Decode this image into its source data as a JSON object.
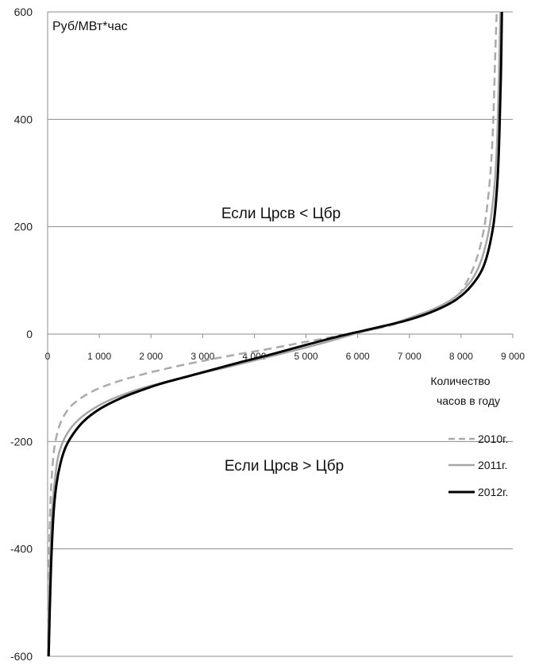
{
  "chart_data": {
    "type": "line",
    "title": "",
    "ylabel": "Руб/МВт*час",
    "xlabel": [
      "Количество",
      "часов в году"
    ],
    "xlim": [
      0,
      9000
    ],
    "ylim": [
      -600,
      600
    ],
    "x_ticks": [
      0,
      1000,
      2000,
      3000,
      4000,
      5000,
      6000,
      7000,
      8000,
      9000
    ],
    "x_tick_labels": [
      "0",
      "1 000",
      "2 000",
      "3 000",
      "4 000",
      "5 000",
      "6 000",
      "7 000",
      "8 000",
      "9 000"
    ],
    "y_ticks": [
      600,
      400,
      200,
      0,
      -200,
      -400,
      -600
    ],
    "y_tick_labels": [
      "600",
      "400",
      "200",
      "0",
      "-200",
      "-400",
      "-600"
    ],
    "grid": "horizontal",
    "legend_position": "right",
    "annotations": [
      "Если Црсв < Цбр",
      "Если Црсв > Цбр"
    ],
    "series": [
      {
        "name": "2010г.",
        "color": "#aaaaaa",
        "style": "dashed",
        "x": [
          5,
          30,
          60,
          100,
          150,
          250,
          400,
          600,
          900,
          1300,
          1800,
          2400,
          3000,
          3600,
          4200,
          4800,
          5300,
          5700,
          6000,
          6500,
          7000,
          7500,
          7900,
          8100,
          8300,
          8450,
          8550,
          8600,
          8630,
          8660,
          8690
        ],
        "y": [
          -600,
          -400,
          -300,
          -240,
          -200,
          -165,
          -140,
          -122,
          -105,
          -90,
          -76,
          -62,
          -50,
          -39,
          -29,
          -18,
          -9,
          -2,
          3,
          13,
          27,
          47,
          70,
          95,
          140,
          200,
          280,
          350,
          420,
          520,
          600
        ]
      },
      {
        "name": "2011г.",
        "color": "#a6a6a6",
        "style": "solid",
        "x": [
          10,
          40,
          80,
          130,
          200,
          300,
          450,
          650,
          900,
          1200,
          1600,
          2000,
          2500,
          3000,
          3500,
          4000,
          4500,
          5000,
          5500,
          6000,
          6500,
          7000,
          7500,
          7900,
          8200,
          8400,
          8550,
          8650,
          8700,
          8730,
          8760
        ],
        "y": [
          -600,
          -450,
          -340,
          -280,
          -230,
          -200,
          -175,
          -155,
          -138,
          -123,
          -108,
          -96,
          -84,
          -72,
          -61,
          -49,
          -37,
          -25,
          -12,
          2,
          14,
          30,
          48,
          70,
          100,
          140,
          200,
          280,
          370,
          470,
          600
        ]
      },
      {
        "name": "2012г.",
        "color": "#000000",
        "style": "solid",
        "x": [
          20,
          60,
          110,
          170,
          250,
          350,
          500,
          700,
          1000,
          1400,
          1800,
          2200,
          2700,
          3200,
          3700,
          4200,
          4700,
          5200,
          5600,
          6000,
          6500,
          7000,
          7500,
          7900,
          8200,
          8450,
          8620,
          8700,
          8740,
          8770,
          8790
        ],
        "y": [
          -600,
          -450,
          -340,
          -280,
          -240,
          -210,
          -185,
          -162,
          -140,
          -120,
          -105,
          -92,
          -79,
          -66,
          -53,
          -41,
          -28,
          -15,
          -5,
          4,
          15,
          27,
          44,
          64,
          90,
          130,
          200,
          280,
          370,
          480,
          600
        ]
      }
    ]
  }
}
